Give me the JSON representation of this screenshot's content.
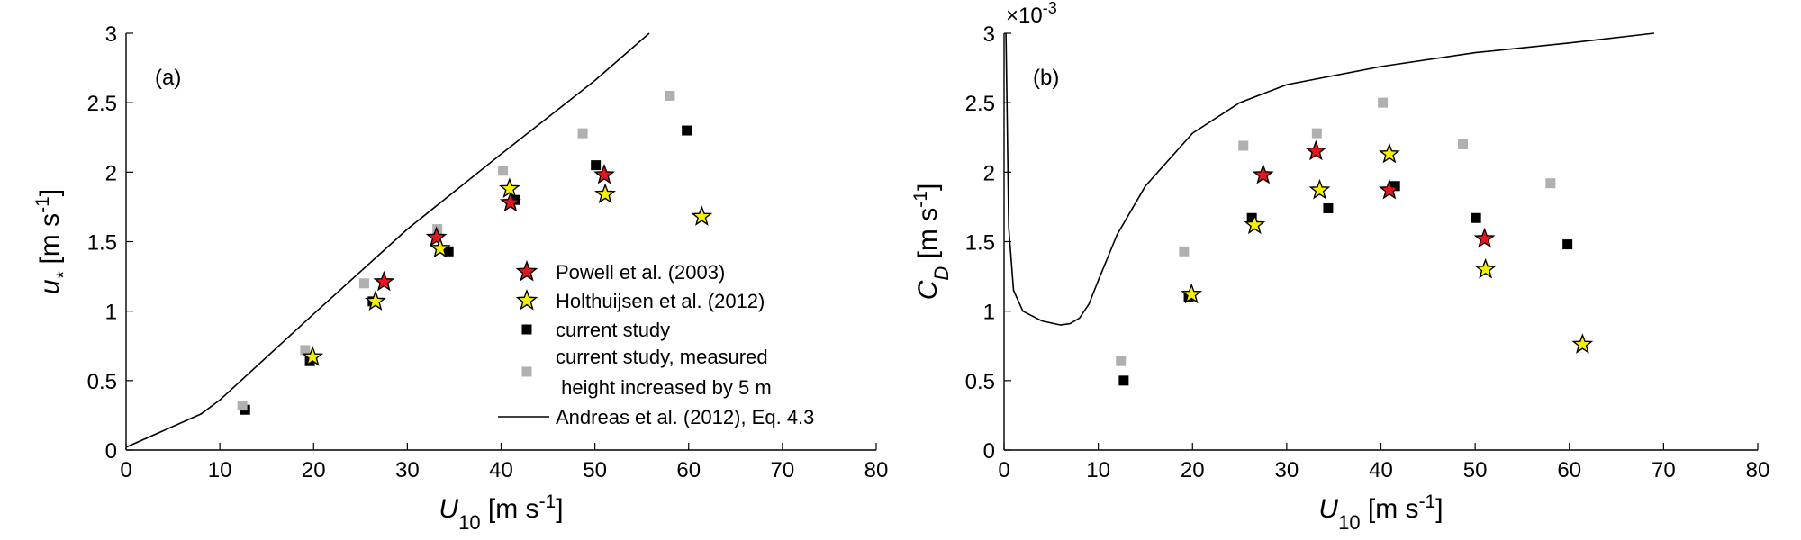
{
  "chart_data": [
    {
      "type": "scatter",
      "panel_label": "(a)",
      "xlabel": {
        "base": "U",
        "sub": "10",
        "units": " [m s",
        "exp": "-1",
        "close": "]"
      },
      "ylabel": {
        "base": "u",
        "sub": "*",
        "units": " [m s",
        "exp": "-1",
        "close": "]"
      },
      "xlim": [
        0,
        80
      ],
      "ylim": [
        0,
        3
      ],
      "xticks": [
        "0",
        "10",
        "20",
        "30",
        "40",
        "50",
        "60",
        "70",
        "80"
      ],
      "yticks": [
        "0",
        "0.5",
        "1",
        "1.5",
        "2",
        "2.5",
        "3"
      ],
      "grid": false,
      "legend_position": "inside lower-right",
      "series": [
        {
          "name": "Powell et al. (2003)",
          "marker": "star",
          "color": "#e8161b",
          "x": [
            27.5,
            33.1,
            41.0,
            51.0
          ],
          "y": [
            1.21,
            1.53,
            1.78,
            1.98
          ]
        },
        {
          "name": "Holthuijsen et al. (2012)",
          "marker": "star",
          "color": "#f5f000",
          "x": [
            19.9,
            26.6,
            33.5,
            40.9,
            51.1,
            61.4
          ],
          "y": [
            0.67,
            1.07,
            1.45,
            1.88,
            1.84,
            1.68
          ]
        },
        {
          "name": "current study",
          "marker": "square",
          "color": "#000000",
          "x": [
            12.7,
            19.6,
            26.3,
            34.4,
            41.5,
            50.1,
            59.8
          ],
          "y": [
            0.29,
            0.64,
            1.07,
            1.43,
            1.8,
            2.05,
            2.3
          ]
        },
        {
          "name": "current study, measured height increased by 5 m",
          "legend_lines": [
            "current study, measured",
            " height increased by 5 m"
          ],
          "marker": "square",
          "color": "#b0b0b0",
          "x": [
            12.4,
            19.1,
            25.4,
            33.2,
            40.2,
            48.7,
            58.0
          ],
          "y": [
            0.32,
            0.72,
            1.2,
            1.59,
            2.01,
            2.28,
            2.55
          ]
        },
        {
          "name": "Andreas et al. (2012), Eq. 4.3",
          "marker": "line",
          "color": "#000000",
          "x": [
            0,
            4,
            8,
            10,
            20,
            30,
            40,
            50,
            55.8
          ],
          "y": [
            0.02,
            0.14,
            0.26,
            0.36,
            0.98,
            1.59,
            2.13,
            2.66,
            3.0
          ]
        }
      ]
    },
    {
      "type": "scatter",
      "panel_label": "(b)",
      "xlabel": {
        "base": "U",
        "sub": "10",
        "units": " [m s",
        "exp": "-1",
        "close": "]"
      },
      "ylabel": {
        "base": "C",
        "sub": "D",
        "units": " [m s",
        "exp": "-1",
        "close": "]"
      },
      "y_multiplier": {
        "base": "×10",
        "exp": "-3"
      },
      "xlim": [
        0,
        80
      ],
      "ylim": [
        0,
        3
      ],
      "xticks": [
        "0",
        "10",
        "20",
        "30",
        "40",
        "50",
        "60",
        "70",
        "80"
      ],
      "yticks": [
        "0",
        "0.5",
        "1",
        "1.5",
        "2",
        "2.5",
        "3"
      ],
      "grid": false,
      "series": [
        {
          "name": "Powell et al. (2003)",
          "marker": "star",
          "color": "#e8161b",
          "x": [
            27.5,
            33.1,
            40.9,
            51.0
          ],
          "y": [
            1.98,
            2.15,
            1.87,
            1.52
          ]
        },
        {
          "name": "Holthuijsen et al. (2012)",
          "marker": "star",
          "color": "#f5f000",
          "x": [
            19.9,
            26.6,
            33.5,
            40.9,
            51.1,
            61.4
          ],
          "y": [
            1.12,
            1.62,
            1.87,
            2.13,
            1.3,
            0.76
          ]
        },
        {
          "name": "current study",
          "marker": "square",
          "color": "#000000",
          "x": [
            12.7,
            19.6,
            26.3,
            34.4,
            41.5,
            50.1,
            59.8
          ],
          "y": [
            0.5,
            1.1,
            1.67,
            1.74,
            1.9,
            1.67,
            1.48
          ]
        },
        {
          "name": "current study, measured height increased by 5 m",
          "marker": "square",
          "color": "#b0b0b0",
          "x": [
            12.4,
            19.1,
            25.4,
            33.2,
            40.2,
            48.7,
            58.0
          ],
          "y": [
            0.64,
            1.43,
            2.19,
            2.28,
            2.5,
            2.2,
            1.92
          ]
        },
        {
          "name": "Andreas et al. (2012), Eq. 4.3",
          "marker": "line",
          "color": "#000000",
          "x": [
            0.2,
            0.5,
            1,
            2,
            4,
            6,
            7,
            8,
            9,
            10,
            12,
            15,
            20,
            25,
            30,
            40,
            50,
            60,
            69
          ],
          "y": [
            3.0,
            1.6,
            1.15,
            1.0,
            0.93,
            0.9,
            0.91,
            0.95,
            1.05,
            1.22,
            1.55,
            1.9,
            2.28,
            2.5,
            2.63,
            2.76,
            2.86,
            2.93,
            3.0
          ]
        }
      ]
    }
  ]
}
